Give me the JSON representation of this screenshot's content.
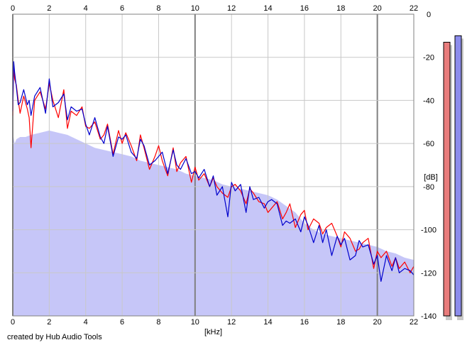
{
  "credit": "created by Hub Audio Tools",
  "colors": {
    "left_channel": "#ff0000",
    "right_channel": "#0000cc",
    "fill": "#c6c6f8",
    "grid": "#c8c8c8",
    "major_grid": "#808080",
    "meter_left": "#e87c7c",
    "meter_right": "#8c8cec",
    "meter_shadow": "#c8c8c8"
  },
  "chart_data": {
    "type": "line",
    "title": "",
    "xlabel": "[kHz]",
    "ylabel": "[dB]",
    "xlim": [
      0,
      22
    ],
    "ylim": [
      -140,
      0
    ],
    "x_ticks": [
      0,
      2,
      4,
      6,
      8,
      10,
      12,
      14,
      16,
      18,
      20,
      22
    ],
    "y_ticks": [
      0,
      -20,
      -40,
      -60,
      -80,
      -100,
      -120,
      -140
    ],
    "x_major_lines": [
      0,
      10,
      20
    ],
    "grid": true,
    "legend": "none",
    "envelope": {
      "x": [
        0,
        0.1,
        0.2,
        0.4,
        0.7,
        1,
        1.5,
        2,
        2.5,
        3,
        3.5,
        4,
        4.5,
        5,
        5.5,
        6,
        6.5,
        7,
        7.5,
        8,
        8.5,
        9,
        9.5,
        10,
        10.5,
        11,
        11.5,
        12,
        12.5,
        13,
        13.5,
        14,
        14.5,
        15,
        15.5,
        16,
        16.5,
        17,
        17.5,
        18,
        18.5,
        19,
        19.5,
        20,
        20.5,
        21,
        21.5,
        22
      ],
      "y": [
        -55,
        -60,
        -58,
        -57,
        -57,
        -56,
        -55,
        -54,
        -55,
        -56,
        -58,
        -60,
        -62,
        -63,
        -64,
        -65,
        -66,
        -68,
        -69,
        -70,
        -71,
        -72,
        -74,
        -75,
        -76,
        -77,
        -79,
        -80,
        -81,
        -82,
        -83,
        -84,
        -86,
        -89,
        -92,
        -97,
        -100,
        -102,
        -103,
        -104,
        -105,
        -106,
        -107,
        -108,
        -110,
        -111,
        -113,
        -114
      ]
    },
    "series": [
      {
        "channel": "left",
        "x": [
          0,
          0.05,
          0.1,
          0.2,
          0.3,
          0.4,
          0.6,
          0.8,
          0.9,
          1,
          1.2,
          1.5,
          1.8,
          2,
          2.2,
          2.5,
          2.8,
          3,
          3.2,
          3.5,
          3.8,
          4,
          4.2,
          4.5,
          4.8,
          5,
          5.2,
          5.5,
          5.8,
          6,
          6.2,
          6.5,
          6.8,
          7,
          7.2,
          7.5,
          7.8,
          8,
          8.2,
          8.5,
          8.8,
          9,
          9.2,
          9.5,
          9.8,
          10,
          10.2,
          10.5,
          10.8,
          11,
          11.2,
          11.5,
          11.8,
          12,
          12.2,
          12.5,
          12.8,
          13,
          13.2,
          13.5,
          13.8,
          14,
          14.2,
          14.5,
          14.8,
          15,
          15.2,
          15.5,
          15.8,
          16,
          16.2,
          16.5,
          16.8,
          17,
          17.2,
          17.5,
          17.8,
          18,
          18.2,
          18.5,
          18.8,
          19,
          19.2,
          19.5,
          19.8,
          20,
          20.2,
          20.5,
          20.8,
          21,
          21.2,
          21.5,
          21.8,
          22
        ],
        "y": [
          -47,
          -25,
          -30,
          -33,
          -40,
          -46,
          -38,
          -44,
          -48,
          -62,
          -40,
          -36,
          -44,
          -32,
          -40,
          -48,
          -35,
          -53,
          -45,
          -47,
          -43,
          -52,
          -53,
          -50,
          -58,
          -56,
          -51,
          -65,
          -54,
          -60,
          -55,
          -61,
          -68,
          -56,
          -62,
          -72,
          -66,
          -61,
          -68,
          -75,
          -62,
          -73,
          -69,
          -66,
          -78,
          -71,
          -77,
          -74,
          -80,
          -76,
          -80,
          -83,
          -85,
          -80,
          -79,
          -82,
          -88,
          -81,
          -83,
          -87,
          -88,
          -92,
          -90,
          -87,
          -95,
          -92,
          -88,
          -99,
          -93,
          -91,
          -100,
          -95,
          -97,
          -102,
          -99,
          -97,
          -103,
          -108,
          -101,
          -104,
          -110,
          -109,
          -106,
          -104,
          -118,
          -110,
          -113,
          -110,
          -117,
          -113,
          -118,
          -115,
          -120,
          -117
        ]
      },
      {
        "channel": "right",
        "x": [
          0,
          0.05,
          0.1,
          0.2,
          0.3,
          0.4,
          0.6,
          0.8,
          0.9,
          1,
          1.2,
          1.5,
          1.8,
          2,
          2.2,
          2.5,
          2.8,
          3,
          3.2,
          3.5,
          3.8,
          4,
          4.2,
          4.5,
          4.8,
          5,
          5.2,
          5.5,
          5.8,
          6,
          6.2,
          6.5,
          6.8,
          7,
          7.2,
          7.5,
          7.8,
          8,
          8.2,
          8.5,
          8.8,
          9,
          9.2,
          9.5,
          9.8,
          10,
          10.2,
          10.5,
          10.8,
          11,
          11.2,
          11.5,
          11.8,
          12,
          12.2,
          12.5,
          12.8,
          13,
          13.2,
          13.5,
          13.8,
          14,
          14.2,
          14.5,
          14.8,
          15,
          15.2,
          15.5,
          15.8,
          16,
          16.2,
          16.5,
          16.8,
          17,
          17.2,
          17.5,
          17.8,
          18,
          18.2,
          18.5,
          18.8,
          19,
          19.2,
          19.5,
          19.8,
          20,
          20.2,
          20.5,
          20.8,
          21,
          21.2,
          21.5,
          21.8,
          22
        ],
        "y": [
          -45,
          -22,
          -27,
          -34,
          -42,
          -41,
          -35,
          -42,
          -40,
          -47,
          -38,
          -34,
          -46,
          -30,
          -43,
          -41,
          -37,
          -49,
          -43,
          -45,
          -44,
          -51,
          -56,
          -48,
          -57,
          -60,
          -52,
          -66,
          -57,
          -58,
          -56,
          -64,
          -67,
          -58,
          -61,
          -70,
          -68,
          -66,
          -64,
          -74,
          -63,
          -70,
          -72,
          -67,
          -74,
          -73,
          -76,
          -72,
          -80,
          -75,
          -84,
          -80,
          -94,
          -78,
          -82,
          -79,
          -92,
          -80,
          -86,
          -85,
          -90,
          -87,
          -86,
          -88,
          -98,
          -96,
          -97,
          -95,
          -101,
          -94,
          -98,
          -106,
          -98,
          -106,
          -100,
          -112,
          -103,
          -107,
          -104,
          -114,
          -112,
          -105,
          -108,
          -107,
          -116,
          -112,
          -124,
          -112,
          -119,
          -113,
          -120,
          -118,
          -119,
          -121
        ]
      }
    ]
  },
  "meters": {
    "left_level_db": -13,
    "right_level_db": -10,
    "floor_db": -140
  }
}
